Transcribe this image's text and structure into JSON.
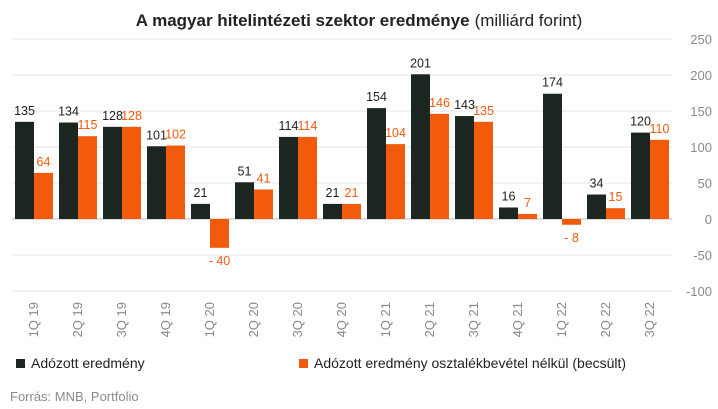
{
  "chart_data": {
    "type": "bar",
    "title": "A magyar hitelintézeti szektor eredménye",
    "title_unit": "(milliárd forint)",
    "categories": [
      "1Q 19",
      "2Q 19",
      "3Q 19",
      "4Q 19",
      "1Q 20",
      "2Q 20",
      "3Q 20",
      "4Q 20",
      "1Q 21",
      "2Q 21",
      "3Q 21",
      "4Q 21",
      "1Q 22",
      "2Q 22",
      "3Q 22"
    ],
    "series": [
      {
        "name": "Adózott eredmény",
        "color": "#1c2621",
        "values": [
          135,
          134,
          128,
          101,
          21,
          51,
          114,
          21,
          154,
          201,
          143,
          16,
          174,
          34,
          120
        ],
        "labels": [
          "135",
          "134",
          "128",
          "101",
          "21",
          "51",
          "114",
          "21",
          "154",
          "201",
          "143",
          "16",
          "174",
          "34",
          "120"
        ]
      },
      {
        "name": "Adózott eredmény osztalékbevétel nélkül (becsült)",
        "color": "#f25a0c",
        "values": [
          64,
          115,
          128,
          102,
          -40,
          41,
          114,
          21,
          104,
          146,
          135,
          7,
          -8,
          15,
          110
        ],
        "labels": [
          "64",
          "115",
          "128",
          "102",
          "- 40",
          "41",
          "114",
          "21",
          "104",
          "146",
          "135",
          "7",
          "- 8",
          "15",
          "110"
        ]
      }
    ],
    "ylim": [
      -100,
      250
    ],
    "yticks": [
      250,
      200,
      150,
      100,
      50,
      0,
      -50,
      -100
    ],
    "ytick_labels": [
      "250",
      "200",
      "150",
      "100",
      "50",
      "0",
      "-50",
      "-100"
    ],
    "grid": true,
    "legend": "bottom",
    "ylabel": "",
    "xlabel": ""
  },
  "source": "Forrás: MNB, Portfolio"
}
